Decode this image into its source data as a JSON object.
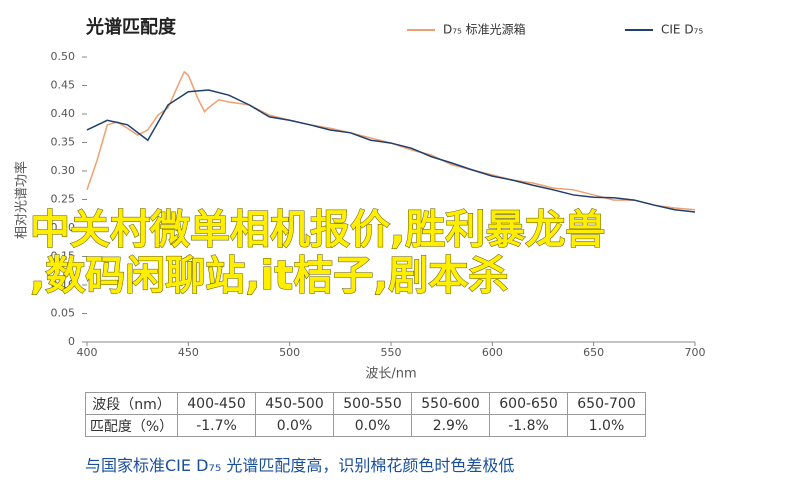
{
  "chart_data": {
    "type": "line",
    "title": "光谱匹配度",
    "x_label": "波长/nm",
    "y_label": "相对光谱功率",
    "series": [
      {
        "name": "D₇₅ 标准光源箱",
        "color": "#f0a070",
        "x": [
          400,
          405,
          410,
          415,
          420,
          425,
          430,
          435,
          440,
          445,
          448,
          450,
          455,
          458,
          460,
          465,
          470,
          480,
          490,
          500,
          510,
          520,
          530,
          540,
          550,
          560,
          570,
          580,
          590,
          600,
          610,
          620,
          630,
          640,
          650,
          660,
          670,
          680,
          690,
          700
        ],
        "values": [
          0.267,
          0.319,
          0.381,
          0.386,
          0.375,
          0.363,
          0.372,
          0.398,
          0.411,
          0.451,
          0.474,
          0.468,
          0.425,
          0.404,
          0.411,
          0.425,
          0.421,
          0.416,
          0.398,
          0.389,
          0.381,
          0.375,
          0.367,
          0.358,
          0.349,
          0.337,
          0.328,
          0.311,
          0.302,
          0.293,
          0.284,
          0.279,
          0.27,
          0.267,
          0.258,
          0.249,
          0.249,
          0.24,
          0.235,
          0.232
        ]
      },
      {
        "name": "CIE D₇₅",
        "color": "#1f3f6e",
        "x": [
          400,
          410,
          420,
          430,
          440,
          450,
          460,
          470,
          480,
          490,
          500,
          510,
          520,
          530,
          540,
          550,
          560,
          570,
          580,
          590,
          600,
          610,
          620,
          630,
          640,
          650,
          660,
          670,
          680,
          690,
          700
        ],
        "values": [
          0.372,
          0.389,
          0.381,
          0.354,
          0.416,
          0.439,
          0.442,
          0.433,
          0.416,
          0.395,
          0.389,
          0.381,
          0.372,
          0.367,
          0.354,
          0.349,
          0.34,
          0.325,
          0.314,
          0.302,
          0.291,
          0.284,
          0.275,
          0.267,
          0.258,
          0.254,
          0.253,
          0.249,
          0.24,
          0.232,
          0.228
        ]
      }
    ],
    "xlim": [
      400,
      700
    ],
    "xticks": [
      400,
      450,
      500,
      550,
      600,
      650,
      700
    ],
    "ylim": [
      0,
      0.5
    ],
    "yticks": [
      0,
      0.05,
      {
        "value": 0.1,
        "label": "0.10"
      },
      0.15,
      {
        "value": 0.2,
        "label": "0.20"
      },
      0.25,
      {
        "value": 0.3,
        "label": "0.30"
      },
      0.35,
      {
        "value": 0.4,
        "label": "0.40"
      },
      0.45,
      {
        "value": 0.5,
        "label": "0.50"
      }
    ]
  },
  "overlay": [
    "中关村微单相机报价,胜利暴龙兽",
    ",数码闲聊站,it桔子,剧本杀"
  ],
  "table": {
    "rows": [
      [
        "波段（nm）",
        "400-450",
        "450-500",
        "500-550",
        "550-600",
        "600-650",
        "650-700"
      ],
      [
        "匹配度（%）",
        "-1.7%",
        "0.0%",
        "0.0%",
        "2.9%",
        "-1.8%",
        "1.0%"
      ]
    ]
  },
  "caption": "与国家标准CIE D₇₅ 光谱匹配度高，识别棉花颜色时色差极低"
}
